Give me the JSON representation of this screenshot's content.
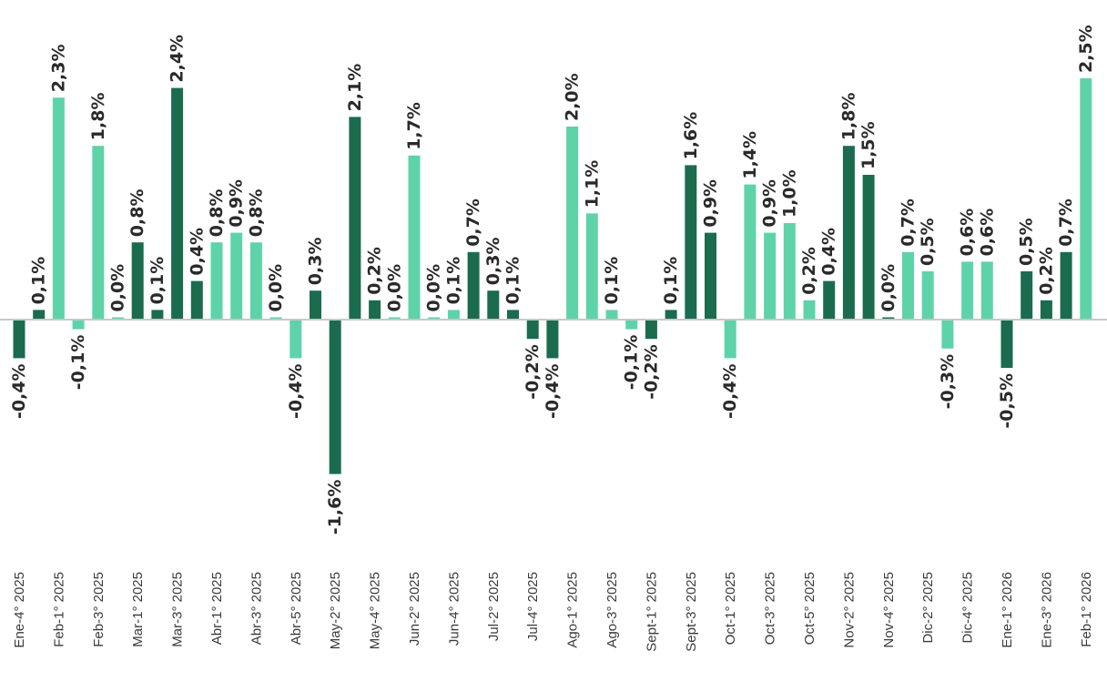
{
  "chart_data": {
    "type": "bar",
    "title": "",
    "xlabel": "",
    "ylabel": "",
    "ylim": [
      -1.7,
      2.6
    ],
    "grid": false,
    "legend": "none",
    "colors": {
      "dark": "#1b6b4f",
      "light": "#5ed3a9",
      "axis": "#c8c8c8"
    },
    "bars": [
      {
        "value": -0.4,
        "label": "-0,4%",
        "color": "dark"
      },
      {
        "value": 0.1,
        "label": "0,1%",
        "color": "dark"
      },
      {
        "value": 2.3,
        "label": "2,3%",
        "color": "light"
      },
      {
        "value": -0.1,
        "label": "-0,1%",
        "color": "light"
      },
      {
        "value": 1.8,
        "label": "1,8%",
        "color": "light"
      },
      {
        "value": 0.0,
        "label": "0,0%",
        "color": "light"
      },
      {
        "value": 0.8,
        "label": "0,8%",
        "color": "dark"
      },
      {
        "value": 0.1,
        "label": "0,1%",
        "color": "dark"
      },
      {
        "value": 2.4,
        "label": "2,4%",
        "color": "dark"
      },
      {
        "value": 0.4,
        "label": "0,4%",
        "color": "dark"
      },
      {
        "value": 0.8,
        "label": "0,8%",
        "color": "light"
      },
      {
        "value": 0.9,
        "label": "0,9%",
        "color": "light"
      },
      {
        "value": 0.8,
        "label": "0,8%",
        "color": "light"
      },
      {
        "value": 0.0,
        "label": "0,0%",
        "color": "light"
      },
      {
        "value": -0.4,
        "label": "-0,4%",
        "color": "light"
      },
      {
        "value": 0.3,
        "label": "0,3%",
        "color": "dark"
      },
      {
        "value": -1.6,
        "label": "-1,6%",
        "color": "dark"
      },
      {
        "value": 2.1,
        "label": "2,1%",
        "color": "dark"
      },
      {
        "value": 0.2,
        "label": "0,2%",
        "color": "dark"
      },
      {
        "value": 0.0,
        "label": "0,0%",
        "color": "light"
      },
      {
        "value": 1.7,
        "label": "1,7%",
        "color": "light"
      },
      {
        "value": 0.0,
        "label": "0,0%",
        "color": "light"
      },
      {
        "value": 0.1,
        "label": "0,1%",
        "color": "light"
      },
      {
        "value": 0.7,
        "label": "0,7%",
        "color": "dark"
      },
      {
        "value": 0.3,
        "label": "0,3%",
        "color": "dark"
      },
      {
        "value": 0.1,
        "label": "0,1%",
        "color": "dark"
      },
      {
        "value": -0.2,
        "label": "-0,2%",
        "color": "dark"
      },
      {
        "value": -0.4,
        "label": "-0,4%",
        "color": "dark"
      },
      {
        "value": 2.0,
        "label": "2,0%",
        "color": "light"
      },
      {
        "value": 1.1,
        "label": "1,1%",
        "color": "light"
      },
      {
        "value": 0.1,
        "label": "0,1%",
        "color": "light"
      },
      {
        "value": -0.1,
        "label": "-0,1%",
        "color": "light"
      },
      {
        "value": -0.2,
        "label": "-0,2%",
        "color": "dark"
      },
      {
        "value": 0.1,
        "label": "0,1%",
        "color": "dark"
      },
      {
        "value": 1.6,
        "label": "1,6%",
        "color": "dark"
      },
      {
        "value": 0.9,
        "label": "0,9%",
        "color": "dark"
      },
      {
        "value": -0.4,
        "label": "-0,4%",
        "color": "light"
      },
      {
        "value": 1.4,
        "label": "1,4%",
        "color": "light"
      },
      {
        "value": 0.9,
        "label": "0,9%",
        "color": "light"
      },
      {
        "value": 1.0,
        "label": "1,0%",
        "color": "light"
      },
      {
        "value": 0.2,
        "label": "0,2%",
        "color": "light"
      },
      {
        "value": 0.4,
        "label": "0,4%",
        "color": "dark"
      },
      {
        "value": 1.8,
        "label": "1,8%",
        "color": "dark"
      },
      {
        "value": 1.5,
        "label": "1,5%",
        "color": "dark"
      },
      {
        "value": 0.0,
        "label": "0,0%",
        "color": "dark"
      },
      {
        "value": 0.7,
        "label": "0,7%",
        "color": "light"
      },
      {
        "value": 0.5,
        "label": "0,5%",
        "color": "light"
      },
      {
        "value": -0.3,
        "label": "-0,3%",
        "color": "light"
      },
      {
        "value": 0.6,
        "label": "0,6%",
        "color": "light"
      },
      {
        "value": 0.6,
        "label": "0,6%",
        "color": "light"
      },
      {
        "value": -0.5,
        "label": "-0,5%",
        "color": "dark"
      },
      {
        "value": 0.5,
        "label": "0,5%",
        "color": "dark"
      },
      {
        "value": 0.2,
        "label": "0,2%",
        "color": "dark"
      },
      {
        "value": 0.7,
        "label": "0,7%",
        "color": "dark"
      },
      {
        "value": 2.5,
        "label": "2,5%",
        "color": "light"
      }
    ],
    "tick_labels": [
      "Ene-4° 2025",
      "Feb-1° 2025",
      "Feb-3° 2025",
      "Mar-1° 2025",
      "Mar-3° 2025",
      "Abr-1° 2025",
      "Abr-3° 2025",
      "Abr-5° 2025",
      "May-2° 2025",
      "May-4° 2025",
      "Jun-2° 2025",
      "Jun-4° 2025",
      "Jul-2° 2025",
      "Jul-4° 2025",
      "Ago-1° 2025",
      "Ago-3° 2025",
      "Sept-1° 2025",
      "Sept-3° 2025",
      "Oct-1° 2025",
      "Oct-3° 2025",
      "Oct-5° 2025",
      "Nov-2° 2025",
      "Nov-4° 2025",
      "Dic-2° 2025",
      "Dic-4° 2025",
      "Ene-1° 2026",
      "Ene-3° 2026",
      "Feb-1° 2026"
    ]
  }
}
